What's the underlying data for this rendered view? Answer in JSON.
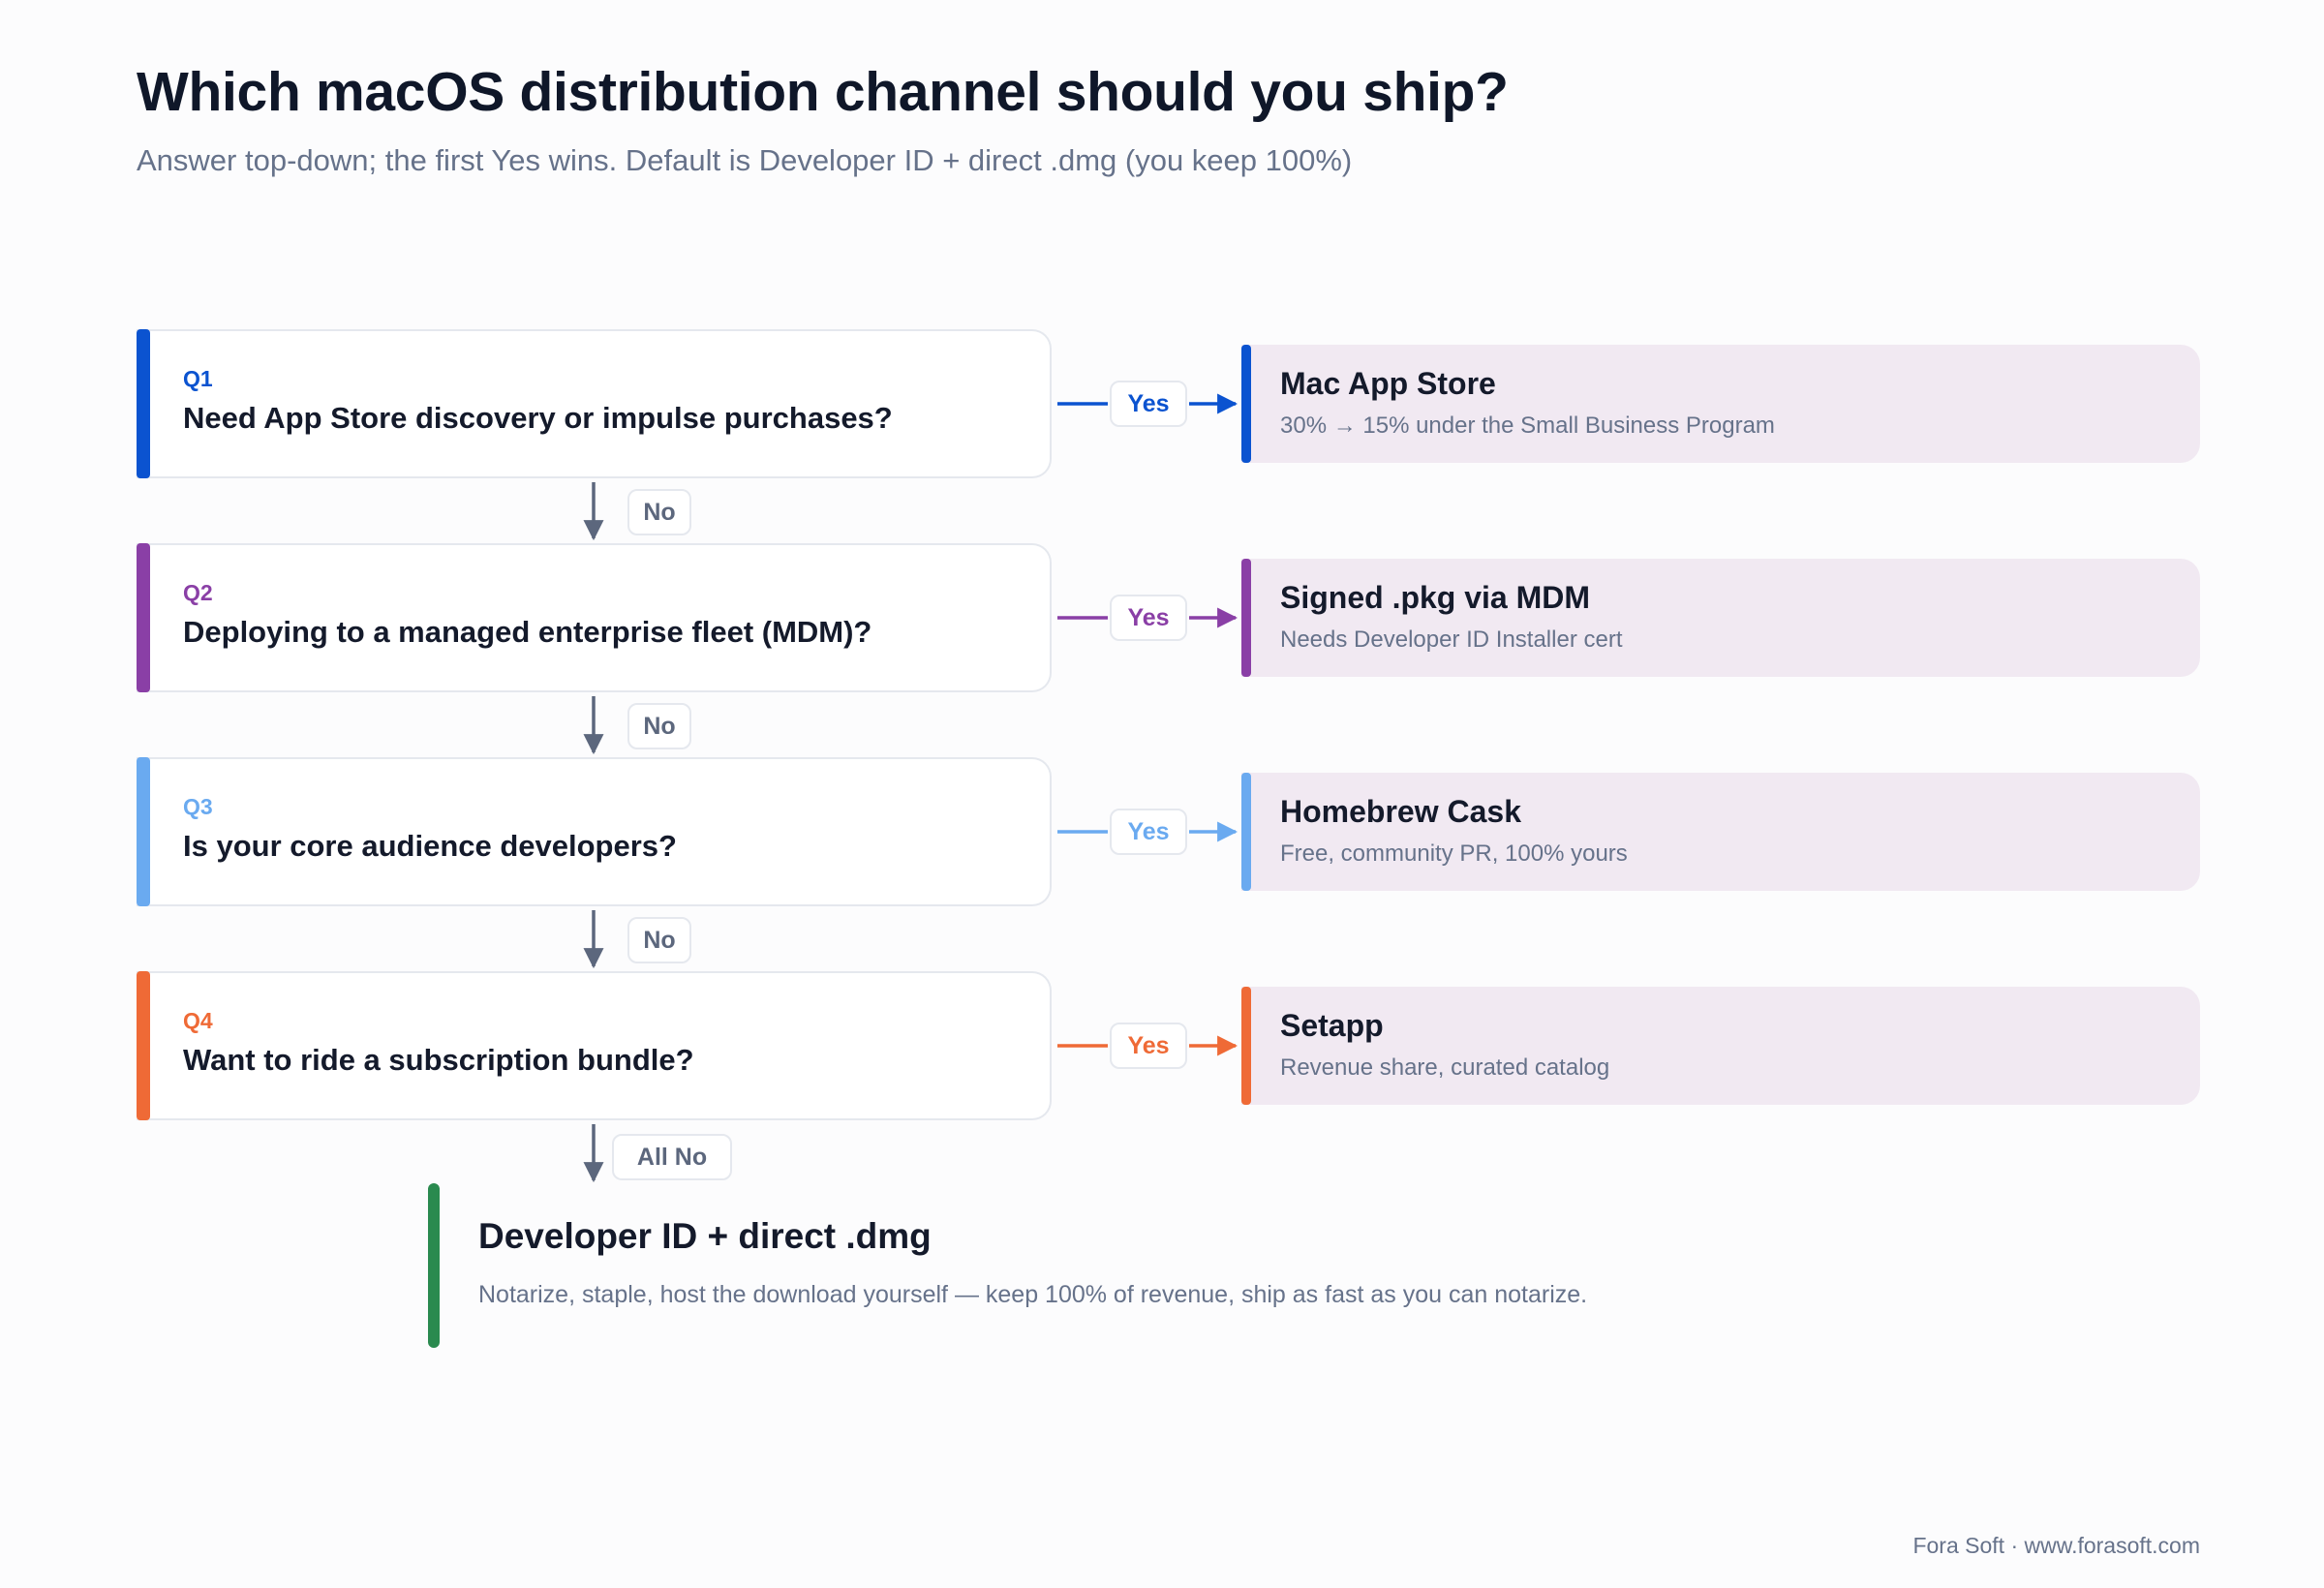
{
  "header": {
    "title": "Which macOS distribution channel should you ship?",
    "subtitle": "Answer top-down; the first Yes wins. Default is Developer ID + direct .dmg (you keep 100%)"
  },
  "questions": [
    {
      "num": "Q1",
      "text": "Need App Store discovery or impulse purchases?",
      "color": "#0b53d0"
    },
    {
      "num": "Q2",
      "text": "Deploying to a managed enterprise fleet (MDM)?",
      "color": "#8a3fa6"
    },
    {
      "num": "Q3",
      "text": "Is your core audience developers?",
      "color": "#6aaaf0"
    },
    {
      "num": "Q4",
      "text": "Want to ride a subscription bundle?",
      "color": "#ef6a36"
    }
  ],
  "answers": [
    {
      "title": "Mac App Store",
      "desc": "30% → 15% under the Small Business Program"
    },
    {
      "title": "Signed .pkg via MDM",
      "desc": "Needs Developer ID Installer cert"
    },
    {
      "title": "Homebrew Cask",
      "desc": "Free, community PR, 100% yours"
    },
    {
      "title": "Setapp",
      "desc": "Revenue share, curated catalog"
    }
  ],
  "labels": {
    "yes": "Yes",
    "no": "No",
    "all_no": "All No"
  },
  "final": {
    "title": "Developer ID + direct .dmg",
    "desc": "Notarize, staple, host the download yourself — keep 100% of revenue, ship as fast as you can notarize.",
    "color": "#2a8a4f"
  },
  "footer": "Fora Soft · www.forasoft.com",
  "connector_color": "#5c677d"
}
